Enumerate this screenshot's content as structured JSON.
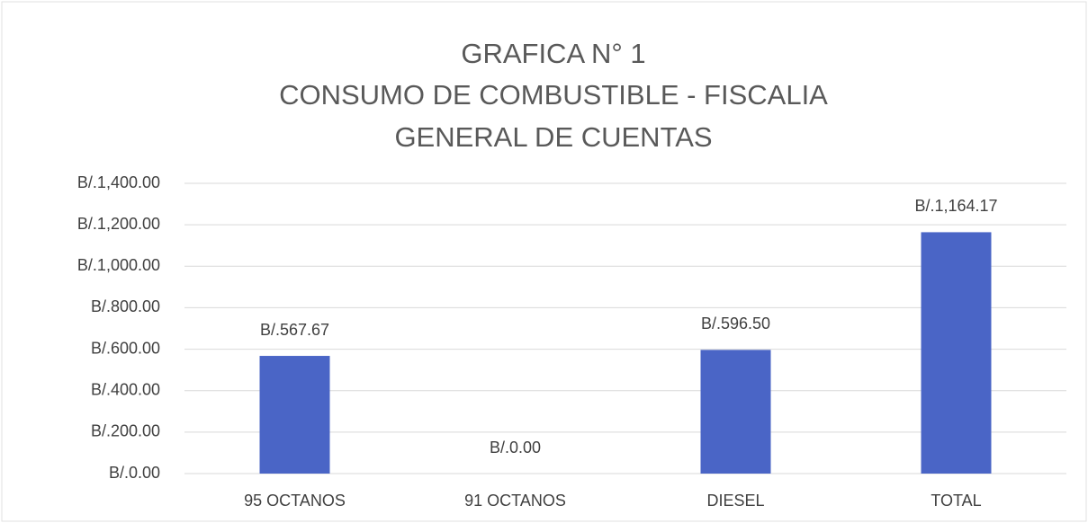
{
  "chart_data": {
    "type": "bar",
    "title": [
      "GRAFICA N° 1",
      "CONSUMO DE COMBUSTIBLE - FISCALIA",
      "GENERAL DE CUENTAS"
    ],
    "categories": [
      "95 OCTANOS",
      "91 OCTANOS",
      "DIESEL",
      "TOTAL"
    ],
    "values": [
      567.67,
      0,
      596.5,
      1164.17
    ],
    "value_labels": [
      "B/.567.67",
      "B/.0.00",
      "B/.596.50",
      "B/.1,164.17"
    ],
    "color": "#4a65c6",
    "ylim": [
      0,
      1400
    ],
    "yticks": [
      {
        "value": 0,
        "label": "B/.0.00"
      },
      {
        "value": 200,
        "label": "B/.200.00"
      },
      {
        "value": 400,
        "label": "B/.400.00"
      },
      {
        "value": 600,
        "label": "B/.600.00"
      },
      {
        "value": 800,
        "label": "B/.800.00"
      },
      {
        "value": 1000,
        "label": "B/.1,000.00"
      },
      {
        "value": 1200,
        "label": "B/.1,200.00"
      },
      {
        "value": 1400,
        "label": "B/.1,400.00"
      }
    ],
    "grid": true
  }
}
